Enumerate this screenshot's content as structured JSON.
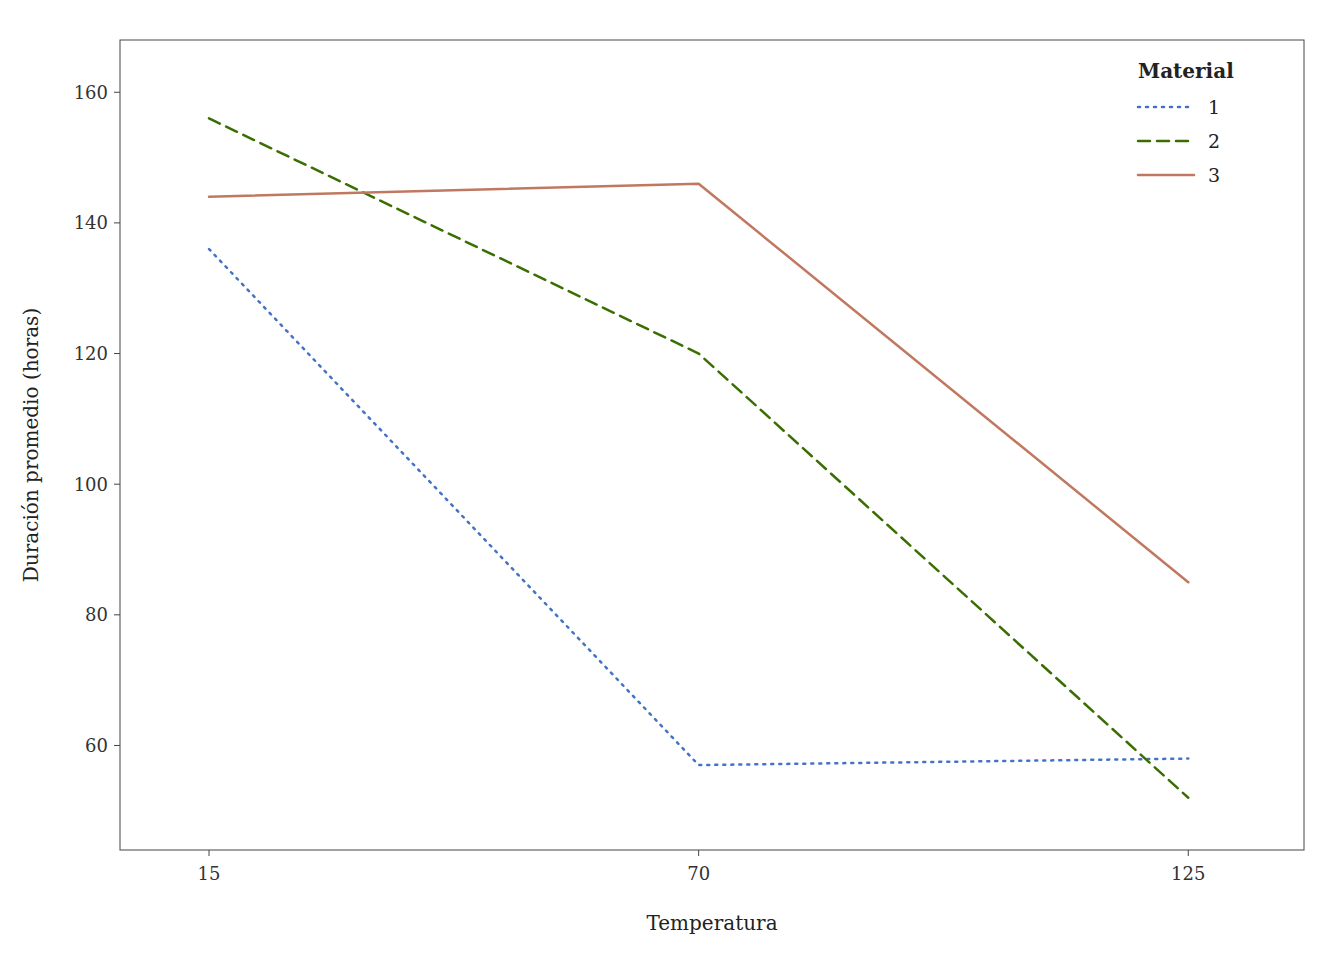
{
  "chart_data": {
    "type": "line",
    "xlabel": "Temperatura",
    "ylabel": "Duración promedio (horas)",
    "legend_title": "Material",
    "x": [
      15,
      70,
      125
    ],
    "series": [
      {
        "name": "1",
        "values": [
          136,
          57,
          58
        ],
        "color": "#4472C4",
        "line_style": "dotted"
      },
      {
        "name": "2",
        "values": [
          156,
          120,
          52
        ],
        "color": "#3a6e00",
        "line_style": "dashed"
      },
      {
        "name": "3",
        "values": [
          144,
          146,
          85
        ],
        "color": "#c07860",
        "line_style": "solid"
      }
    ],
    "xlim": [
      5,
      138
    ],
    "ylim": [
      44,
      168
    ],
    "xticks": [
      15,
      70,
      125
    ],
    "yticks": [
      60,
      80,
      100,
      120,
      140,
      160
    ],
    "grid": false,
    "legend": "upper right"
  }
}
